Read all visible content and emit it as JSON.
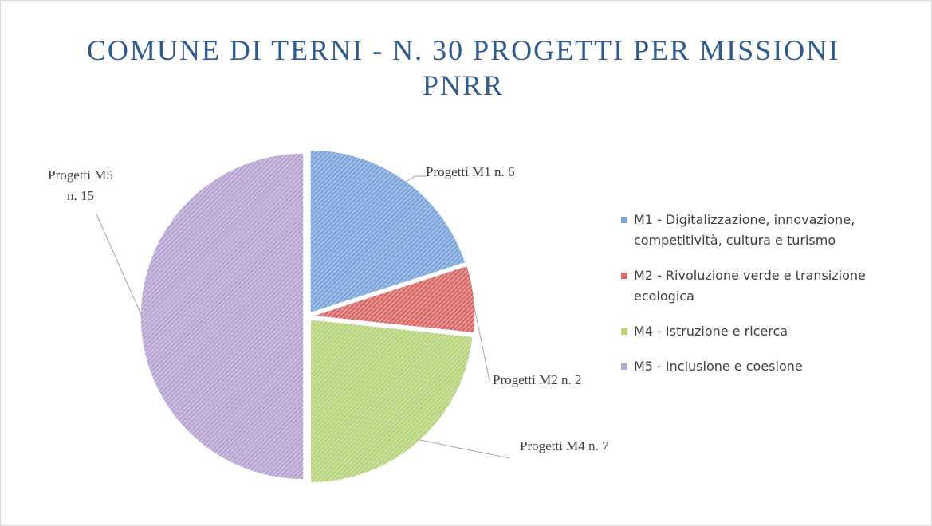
{
  "chart_data": {
    "type": "pie",
    "title": "COMUNE DI TERNI - N. 30 PROGETTI PER MISSIONI PNRR",
    "categories": [
      "M1 - Digitalizzazione, innovazione, competitività, cultura e turismo",
      "M2 - Rivoluzione verde e transizione ecologica",
      "M4 - Istruzione e ricerca",
      "M5 - Inclusione e coesione"
    ],
    "values": [
      6,
      2,
      7,
      15
    ],
    "value_labels": [
      "Progetti M1 n. 6",
      "Progetti M2 n. 2",
      "Progetti M4 n. 7",
      "Progetti M5 n. 15"
    ],
    "colors": [
      "#7ea6dc",
      "#d96b6b",
      "#b8d47c",
      "#b9a5d2"
    ],
    "legend": "right"
  }
}
